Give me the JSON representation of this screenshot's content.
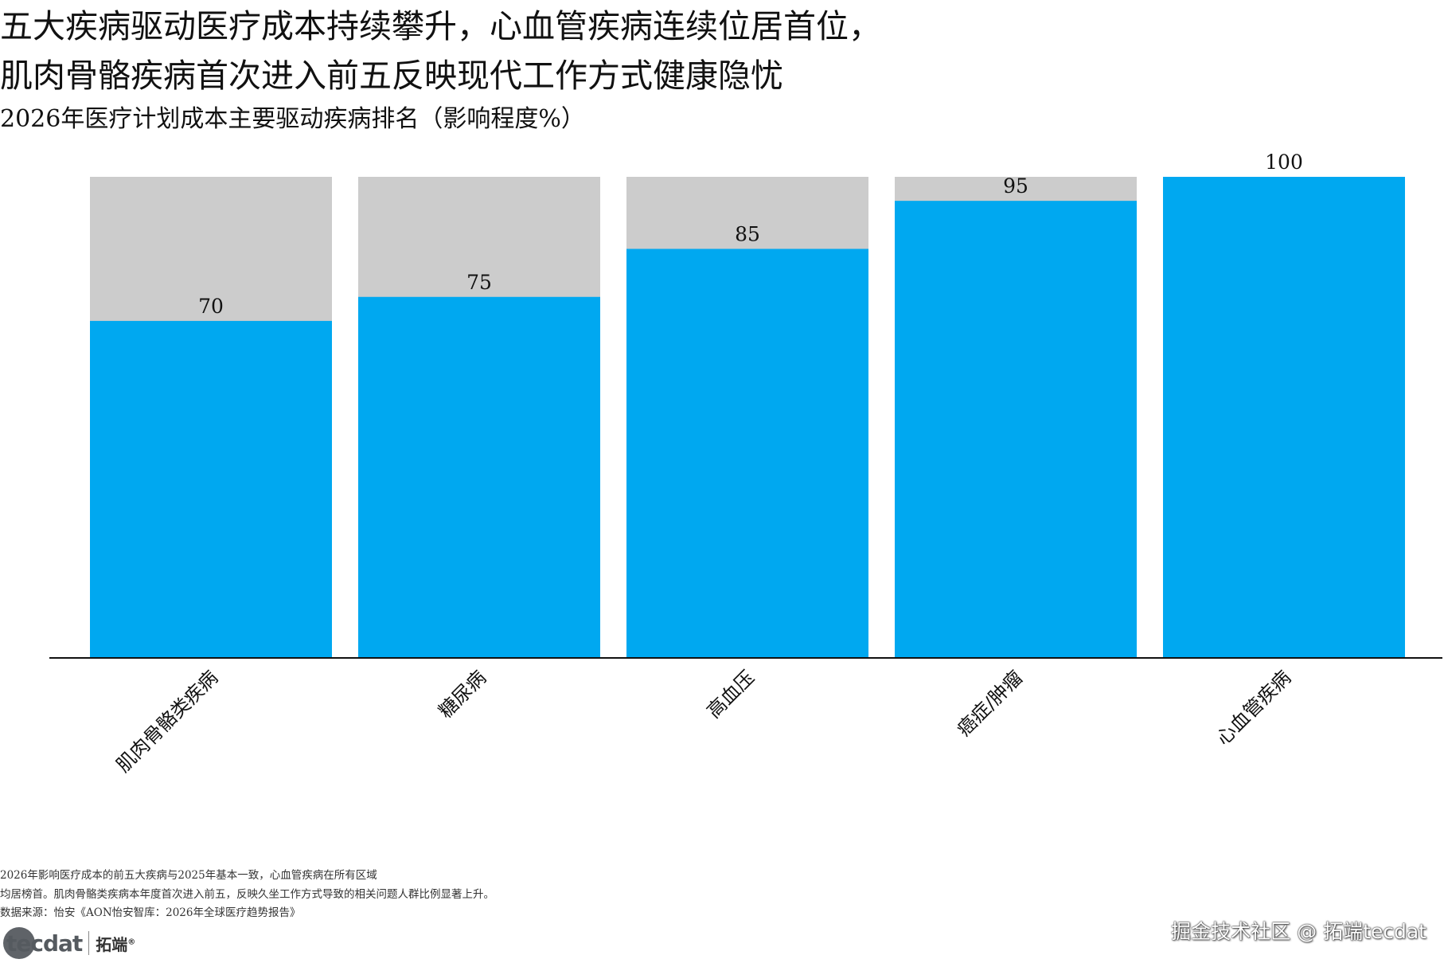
{
  "title": {
    "line1": "五大疾病驱动医疗成本持续攀升，心血管疾病连续位居首位，",
    "line2": "肌肉骨骼疾病首次进入前五反映现代工作方式健康隐忧"
  },
  "subtitle": "2026年医疗计划成本主要驱动疾病排名（影响程度%）",
  "chart_data": {
    "type": "bar",
    "categories": [
      "肌肉骨骼类疾病",
      "糖尿病",
      "高血压",
      "癌症/肿瘤",
      "心血管疾病"
    ],
    "values": [
      70,
      75,
      85,
      95,
      100
    ],
    "background_max": 100,
    "ylim": [
      0,
      100
    ],
    "xlabel": "",
    "ylabel": "",
    "grid": false,
    "colors": {
      "bar": "#00a8f0",
      "background": "#cccccc",
      "axis": "#111111"
    }
  },
  "notes": [
    "2026年影响医疗成本的前五大疾病与2025年基本一致，心血管疾病在所有区域",
    "均居榜首。肌肉骨骼类疾病本年度首次进入前五，反映久坐工作方式导致的相关问题人群比例显著上升。",
    "数据来源：怡安《AON怡安智库：2026年全球医疗趋势报告》"
  ],
  "logo": {
    "brand": "tecdat",
    "cn": "拓端",
    "reg": "®"
  },
  "watermark": "掘金技术社区 @ 拓端tecdat"
}
